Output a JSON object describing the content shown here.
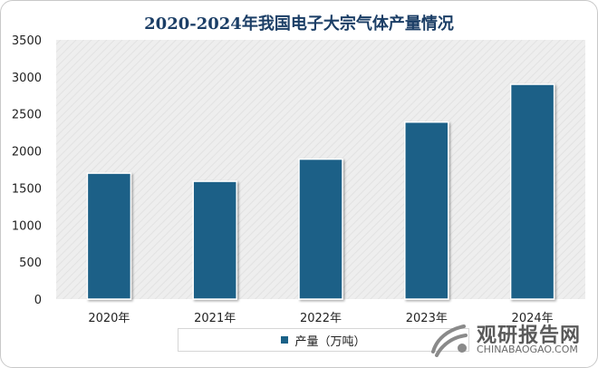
{
  "chart_data": {
    "type": "bar",
    "title": "2020-2024年我国电子大宗气体产量情况",
    "categories": [
      "2020年",
      "2021年",
      "2022年",
      "2023年",
      "2024年"
    ],
    "series": [
      {
        "name": "产量（万吨）",
        "values": [
          1700,
          1590,
          1890,
          2390,
          2900
        ]
      }
    ],
    "ylim": [
      0,
      3500
    ],
    "yticks": [
      0,
      500,
      1000,
      1500,
      2000,
      2500,
      3000,
      3500
    ],
    "grid": false,
    "legend_position": "bottom",
    "colors": {
      "bar": "#1a6187",
      "plot_background": "#eeeeee",
      "title": "#1b3e66"
    }
  },
  "watermark": {
    "name": "观研报告网",
    "url": "CHINABAOGAO.COM"
  }
}
